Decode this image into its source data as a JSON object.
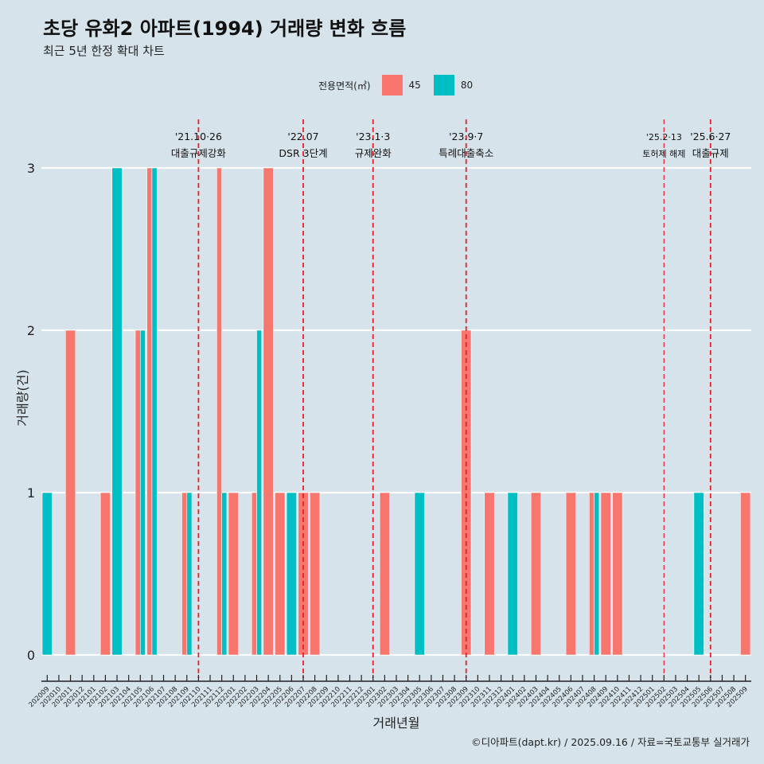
{
  "title": "초당 유화2 아파트(1994) 거래량 변화 흐름",
  "subtitle": "최근 5년 한정 확대 차트",
  "caption": "©디아파트(dapt.kr) / 2025.09.16 / 자료=국토교통부 실거래가",
  "colors": {
    "background": "#d6e3ea",
    "area_45": "#f8766d",
    "area_80": "#00bfc4",
    "event_line": "#e8202a"
  },
  "chart_data": {
    "type": "bar",
    "title": "초당 유화2 아파트(1994) 거래량 변화 흐름",
    "subtitle": "최근 5년 한정 확대 차트",
    "xlabel": "거래년월",
    "ylabel": "거래량(건)",
    "legend_title": "전용면적(㎡)",
    "legend_position": "top",
    "ylim": [
      0,
      3
    ],
    "yticks": [
      0,
      1,
      2,
      3
    ],
    "grid": true,
    "categories": [
      "202009",
      "202010",
      "202011",
      "202012",
      "202101",
      "202102",
      "202103",
      "202104",
      "202105",
      "202106",
      "202107",
      "202108",
      "202109",
      "202110",
      "202111",
      "202112",
      "202201",
      "202202",
      "202203",
      "202204",
      "202205",
      "202206",
      "202207",
      "202208",
      "202209",
      "202210",
      "202211",
      "202212",
      "202301",
      "202302",
      "202303",
      "202304",
      "202305",
      "202306",
      "202307",
      "202308",
      "202309",
      "202310",
      "202311",
      "202312",
      "202401",
      "202402",
      "202403",
      "202404",
      "202405",
      "202406",
      "202407",
      "202408",
      "202409",
      "202410",
      "202411",
      "202412",
      "202501",
      "202502",
      "202503",
      "202504",
      "202505",
      "202506",
      "202507",
      "202508",
      "202509"
    ],
    "series": [
      {
        "name": "45",
        "color": "#f8766d",
        "values": [
          0,
          0,
          2,
          0,
          0,
          1,
          0,
          0,
          2,
          3,
          0,
          0,
          1,
          0,
          0,
          3,
          1,
          0,
          1,
          3,
          1,
          0,
          1,
          1,
          0,
          0,
          0,
          0,
          0,
          1,
          0,
          0,
          0,
          0,
          0,
          0,
          2,
          0,
          1,
          0,
          0,
          0,
          1,
          0,
          0,
          1,
          0,
          1,
          1,
          1,
          0,
          0,
          0,
          0,
          0,
          0,
          0,
          0,
          0,
          0,
          1
        ]
      },
      {
        "name": "80",
        "color": "#00bfc4",
        "values": [
          1,
          0,
          0,
          0,
          0,
          0,
          3,
          0,
          2,
          3,
          0,
          0,
          1,
          0,
          0,
          1,
          0,
          0,
          2,
          0,
          0,
          1,
          0,
          0,
          0,
          0,
          0,
          0,
          0,
          0,
          0,
          0,
          1,
          0,
          0,
          0,
          0,
          0,
          0,
          0,
          1,
          0,
          0,
          0,
          0,
          0,
          0,
          1,
          0,
          0,
          0,
          0,
          0,
          0,
          0,
          0,
          1,
          0,
          0,
          0,
          0
        ]
      }
    ],
    "events": [
      {
        "date": "202110",
        "line1": "'21.10·26",
        "line2": "대출규제강화",
        "small": false
      },
      {
        "date": "202207",
        "line1": "'22.07",
        "line2": "DSR 3단계",
        "small": false
      },
      {
        "date": "202301",
        "line1": "'23.1·3",
        "line2": "규제완화",
        "small": false
      },
      {
        "date": "202309",
        "line1": "'23.9·7",
        "line2": "특례대출축소",
        "small": false
      },
      {
        "date": "202502",
        "line1": "'25.2·13",
        "line2": "토허제 해제",
        "small": true
      },
      {
        "date": "202506",
        "line1": "'25.6·27",
        "line2": "대출규제",
        "small": false
      }
    ]
  }
}
